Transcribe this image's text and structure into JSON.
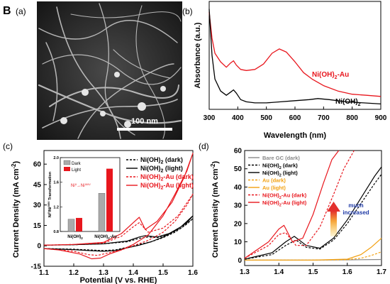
{
  "figure": {
    "section_label": "B",
    "panels": [
      "(a)",
      "(b)",
      "(c)",
      "(d)"
    ],
    "colors": {
      "ni": "#000000",
      "au_composite": "#e8161d",
      "bare": "#888888",
      "au": "#f2a011",
      "arrow_top": "#e3302d",
      "arrow_bottom": "#f7c73a",
      "annotation": "#1f3aa6"
    }
  },
  "chart_data": [
    {
      "panel": "(a)",
      "type": "image",
      "scale_bar": "100 nm"
    },
    {
      "panel": "(b)",
      "type": "line",
      "xlabel": "Wavelength (nm)",
      "ylabel": "Absorbance (a.u.)",
      "xlim": [
        300,
        900
      ],
      "xticks": [
        "300",
        "400",
        "500",
        "600",
        "700",
        "800",
        "900"
      ],
      "series": [
        {
          "name": "Ni(OH)2-Au",
          "name_base": "Ni(OH)",
          "name_sub": "2",
          "name_tail": "-Au",
          "color": "#e8161d",
          "x": [
            300,
            310,
            320,
            340,
            360,
            375,
            385,
            395,
            410,
            430,
            460,
            490,
            520,
            545,
            570,
            600,
            630,
            660,
            700,
            750,
            800,
            850,
            900
          ],
          "y": [
            0.9,
            0.66,
            0.52,
            0.44,
            0.39,
            0.43,
            0.45,
            0.41,
            0.37,
            0.36,
            0.37,
            0.42,
            0.52,
            0.56,
            0.53,
            0.44,
            0.34,
            0.28,
            0.22,
            0.17,
            0.14,
            0.13,
            0.12
          ]
        },
        {
          "name": "Ni(OH)2",
          "name_base": "Ni(OH)",
          "name_sub": "2",
          "name_tail": "",
          "color": "#000000",
          "x": [
            300,
            310,
            320,
            340,
            360,
            375,
            385,
            395,
            410,
            430,
            460,
            500,
            550,
            600,
            650,
            680,
            720,
            780,
            840,
            900
          ],
          "y": [
            0.93,
            0.5,
            0.28,
            0.17,
            0.13,
            0.16,
            0.18,
            0.15,
            0.09,
            0.07,
            0.06,
            0.06,
            0.07,
            0.08,
            0.09,
            0.1,
            0.09,
            0.07,
            0.06,
            0.05
          ]
        }
      ]
    },
    {
      "panel": "(c)",
      "type": "line",
      "xlabel": "Potential (V vs. RHE)",
      "ylabel": "Current Density (mA cm",
      "ylabel_sup": "-2",
      "ylabel_tail": ")",
      "xlim": [
        1.1,
        1.6
      ],
      "ylim": [
        -15,
        70
      ],
      "xticks": [
        "1.1",
        "1.2",
        "1.3",
        "1.4",
        "1.5",
        "1.6"
      ],
      "yticks": [
        "-15",
        "0",
        "15",
        "30",
        "45",
        "60"
      ],
      "legend": [
        {
          "label_base": "Ni(OH)",
          "label_sub": "2",
          "label_tail": " (dark)",
          "color": "#000000",
          "dash": true
        },
        {
          "label_base": "Ni(OH)",
          "label_sub": "2",
          "label_tail": " (light)",
          "color": "#000000",
          "dash": false
        },
        {
          "label_base": "Ni(OH)",
          "label_sub": "2",
          "label_tail": "-Au (dark)",
          "color": "#e8161d",
          "dash": true
        },
        {
          "label_base": "Ni(OH)",
          "label_sub": "2",
          "label_tail": "-Au (light)",
          "color": "#e8161d",
          "dash": false
        }
      ],
      "series": [
        {
          "name": "Ni(OH)2 (dark)",
          "color": "#000000",
          "dash": true,
          "x": [
            1.1,
            1.2,
            1.3,
            1.38,
            1.42,
            1.45,
            1.48,
            1.52,
            1.56,
            1.6,
            1.58,
            1.54,
            1.5,
            1.46,
            1.42,
            1.38,
            1.34,
            1.3,
            1.25,
            1.2,
            1.1
          ],
          "y": [
            0.5,
            0.8,
            1.5,
            3.0,
            5.5,
            6.5,
            6.0,
            8.5,
            13.0,
            20.0,
            16.0,
            10.0,
            6.0,
            3.0,
            1.0,
            -1.0,
            -3.0,
            -3.5,
            -3.0,
            -2.5,
            -2.0
          ]
        },
        {
          "name": "Ni(OH)2 (light)",
          "color": "#000000",
          "dash": false,
          "x": [
            1.1,
            1.2,
            1.3,
            1.38,
            1.42,
            1.44,
            1.48,
            1.52,
            1.56,
            1.6,
            1.58,
            1.54,
            1.5,
            1.46,
            1.42,
            1.38,
            1.34,
            1.3,
            1.25,
            1.2,
            1.1
          ],
          "y": [
            0.5,
            0.8,
            1.5,
            3.5,
            6.5,
            7.5,
            6.5,
            9.0,
            14.0,
            22.0,
            17.0,
            11.0,
            6.5,
            3.0,
            0.5,
            -1.5,
            -3.5,
            -4.0,
            -3.5,
            -2.8,
            -2.0
          ]
        },
        {
          "name": "Ni(OH)2-Au (dark)",
          "color": "#e8161d",
          "dash": true,
          "x": [
            1.1,
            1.2,
            1.3,
            1.36,
            1.4,
            1.42,
            1.45,
            1.5,
            1.55,
            1.6,
            1.58,
            1.54,
            1.5,
            1.45,
            1.4,
            1.36,
            1.32,
            1.28,
            1.25,
            1.2,
            1.1
          ],
          "y": [
            0.5,
            1.0,
            2.0,
            7.0,
            14.0,
            17.0,
            10.0,
            13.0,
            22.0,
            38.0,
            30.0,
            18.0,
            10.0,
            4.0,
            0.0,
            -3.0,
            -5.0,
            -7.0,
            -6.5,
            -4.0,
            -2.0
          ]
        },
        {
          "name": "Ni(OH)2-Au (light)",
          "color": "#e8161d",
          "dash": false,
          "x": [
            1.1,
            1.2,
            1.3,
            1.36,
            1.4,
            1.42,
            1.44,
            1.48,
            1.53,
            1.57,
            1.6,
            1.58,
            1.54,
            1.5,
            1.45,
            1.4,
            1.36,
            1.32,
            1.29,
            1.26,
            1.22,
            1.15,
            1.1
          ],
          "y": [
            0.5,
            1.0,
            2.5,
            9.0,
            17.0,
            21.0,
            12.0,
            18.0,
            32.0,
            50.0,
            68.0,
            55.0,
            38.0,
            22.0,
            8.0,
            1.0,
            -3.0,
            -6.0,
            -9.0,
            -9.5,
            -6.0,
            -3.0,
            -2.0
          ]
        }
      ],
      "inset": {
        "ylabel": "Ni",
        "ylabel_super1": "II",
        "ylabel_mid": "/Ni",
        "ylabel_super2": "III/IV",
        "ylabel_tail": " Transformation",
        "ylim": [
          0.8,
          2.0
        ],
        "yticks": [
          "0.8",
          "1.2",
          "1.6",
          "2.0"
        ],
        "categories_base": [
          "Ni(OH)",
          "Ni(OH)"
        ],
        "categories_sub": [
          "2",
          "2"
        ],
        "categories_tail": [
          "",
          "-Au"
        ],
        "legend": [
          "Dark",
          "Light"
        ],
        "legend_colors": [
          "#aaaaaa",
          "#e8161d"
        ],
        "dark": [
          1.0,
          1.42
        ],
        "light": [
          1.02,
          1.82
        ],
        "reaction_base": "Ni",
        "reaction_sup1": "II",
        "reaction_arrow": "→",
        "reaction_mid": "Ni",
        "reaction_sup2": "III/IV"
      }
    },
    {
      "panel": "(d)",
      "type": "line",
      "ylabel": "Current Density (mA cm",
      "ylabel_sup": "-2",
      "ylabel_tail": ")",
      "xlim": [
        1.3,
        1.7
      ],
      "ylim": [
        -3,
        60
      ],
      "xticks": [
        "1.3",
        "1.4",
        "1.5",
        "1.6",
        "1.7"
      ],
      "yticks": [
        "0",
        "10",
        "20",
        "30",
        "40",
        "50",
        "60"
      ],
      "annotation_line1": "much",
      "annotation_line2": "increased",
      "legend": [
        {
          "label": "Bare GC (dark)",
          "label_base": "Bare GC (dark)",
          "label_sub": "",
          "label_tail": "",
          "color": "#888888",
          "dash": false
        },
        {
          "label_base": "Ni(OH)",
          "label_sub": "2",
          "label_tail": " (dark)",
          "color": "#000000",
          "dash": true
        },
        {
          "label_base": "Ni(OH)",
          "label_sub": "2",
          "label_tail": " (light)",
          "color": "#000000",
          "dash": false
        },
        {
          "label_base": "Au (dark)",
          "label_sub": "",
          "label_tail": "",
          "color": "#f2a011",
          "dash": true
        },
        {
          "label_base": "Au (light)",
          "label_sub": "",
          "label_tail": "",
          "color": "#f2a011",
          "dash": false
        },
        {
          "label_base": "Ni(OH)",
          "label_sub": "2",
          "label_tail": "-Au (dark)",
          "color": "#e8161d",
          "dash": true
        },
        {
          "label_base": "Ni(OH)",
          "label_sub": "2",
          "label_tail": "-Au (light)",
          "color": "#e8161d",
          "dash": false
        }
      ],
      "series": [
        {
          "name": "Bare GC (dark)",
          "color": "#888888",
          "dash": false,
          "x": [
            1.3,
            1.4,
            1.5,
            1.6,
            1.7
          ],
          "y": [
            0.0,
            0.0,
            0.0,
            0.1,
            0.3
          ]
        },
        {
          "name": "Ni(OH)2 (dark)",
          "color": "#000000",
          "dash": true,
          "x": [
            1.3,
            1.38,
            1.42,
            1.45,
            1.48,
            1.52,
            1.56,
            1.6,
            1.64,
            1.68,
            1.7
          ],
          "y": [
            0.5,
            3.0,
            8.0,
            11.0,
            7.0,
            6.0,
            11.0,
            20.0,
            31.0,
            42.0,
            47.0
          ]
        },
        {
          "name": "Ni(OH)2 (light)",
          "color": "#000000",
          "dash": false,
          "x": [
            1.3,
            1.38,
            1.42,
            1.445,
            1.48,
            1.52,
            1.56,
            1.6,
            1.64,
            1.68,
            1.7
          ],
          "y": [
            0.5,
            4.0,
            10.0,
            13.0,
            8.0,
            6.5,
            12.0,
            22.0,
            34.0,
            46.0,
            51.0
          ]
        },
        {
          "name": "Au (dark)",
          "color": "#f2a011",
          "dash": true,
          "x": [
            1.3,
            1.5,
            1.6,
            1.64,
            1.67,
            1.7
          ],
          "y": [
            0.0,
            0.0,
            0.2,
            1.0,
            2.5,
            4.5
          ]
        },
        {
          "name": "Au (light)",
          "color": "#f2a011",
          "dash": false,
          "x": [
            1.3,
            1.5,
            1.6,
            1.64,
            1.67,
            1.7
          ],
          "y": [
            0.0,
            0.0,
            0.5,
            3.0,
            7.0,
            12.0
          ]
        },
        {
          "name": "Ni(OH)2-Au (dark)",
          "color": "#e8161d",
          "dash": true,
          "x": [
            1.3,
            1.37,
            1.4,
            1.42,
            1.45,
            1.48,
            1.52,
            1.56,
            1.59,
            1.62
          ],
          "y": [
            1.0,
            8.0,
            14.0,
            15.0,
            8.0,
            8.0,
            18.0,
            36.0,
            50.0,
            60.0
          ]
        },
        {
          "name": "Ni(OH)2-Au (light)",
          "color": "#e8161d",
          "dash": false,
          "x": [
            1.3,
            1.37,
            1.4,
            1.415,
            1.44,
            1.47,
            1.5,
            1.53,
            1.555,
            1.575
          ],
          "y": [
            1.0,
            10.0,
            17.0,
            19.0,
            10.0,
            12.0,
            25.0,
            42.0,
            55.0,
            60.0
          ]
        }
      ]
    }
  ]
}
